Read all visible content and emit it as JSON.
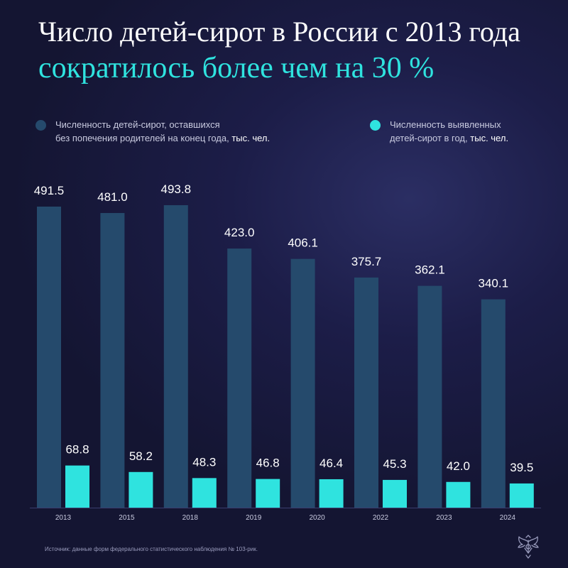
{
  "header": {
    "title_line1": "Число детей-сирот в России с 2013 года",
    "title_line2": "сократилось более чем на 30 %"
  },
  "legend": {
    "series1_line1": "Численность детей-сирот, оставшихся",
    "series1_line2a": "без попечения родителей на конец года,",
    "series1_unit": "тыс. чел.",
    "series2_line1": "Численность выявленных",
    "series2_line2a": "детей-сирот в год,",
    "series2_unit": "тыс. чел."
  },
  "colors": {
    "series1": "#254a6c",
    "series2": "#2fe3df",
    "title_accent": "#2fe3df"
  },
  "chart_data": {
    "type": "bar",
    "title": "Число детей-сирот в России с 2013 года сократилось более чем на 30 %",
    "categories": [
      "2013",
      "2015",
      "2018",
      "2019",
      "2020",
      "2022",
      "2023",
      "2024"
    ],
    "series": [
      {
        "name": "Численность детей-сирот, оставшихся без попечения родителей на конец года, тыс. чел.",
        "values": [
          491.5,
          481.0,
          493.8,
          423.0,
          406.1,
          375.7,
          362.1,
          340.1
        ],
        "labels": [
          "491.5",
          "481.0",
          "493.8",
          "423.0",
          "406.1",
          "375.7",
          "362.1",
          "340.1"
        ]
      },
      {
        "name": "Численность выявленных детей-сирот в год, тыс. чел.",
        "values": [
          68.8,
          58.2,
          48.3,
          46.8,
          46.4,
          45.3,
          42.0,
          39.5
        ],
        "labels": [
          "68.8",
          "58.2",
          "48.3",
          "46.8",
          "46.4",
          "45.3",
          "42.0",
          "39.5"
        ]
      }
    ],
    "xlabel": "",
    "ylabel": "",
    "grid": false,
    "legend_position": "top"
  },
  "footer": {
    "source": "Источник: данные форм федерального статистического наблюдения № 103-рик."
  },
  "icons": {
    "emblem": "double-headed-eagle-icon"
  }
}
